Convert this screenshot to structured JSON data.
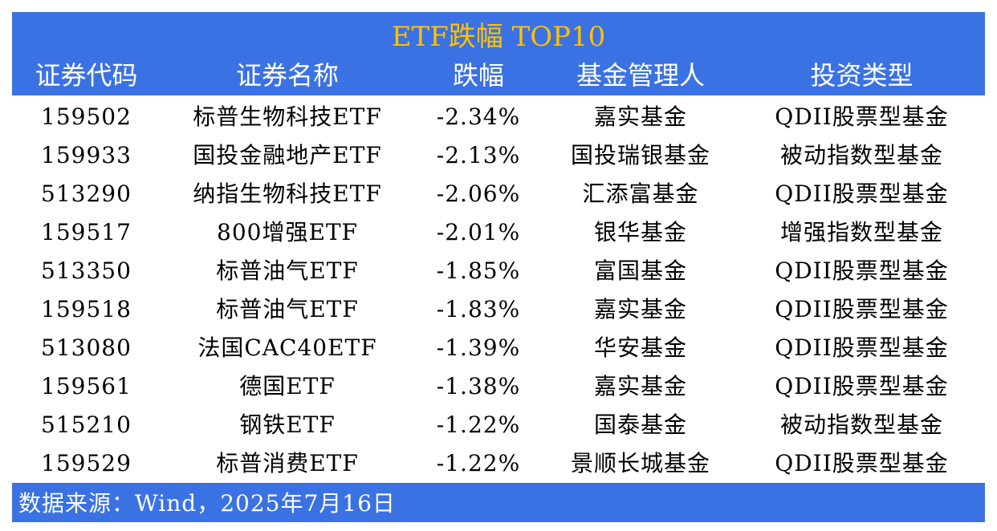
{
  "title": "ETF跌幅 TOP10",
  "columns": [
    "证券代码",
    "证券名称",
    "跌幅",
    "基金管理人",
    "投资类型"
  ],
  "rows": [
    [
      "159502",
      "标普生物科技ETF",
      "-2.34%",
      "嘉实基金",
      "QDII股票型基金"
    ],
    [
      "159933",
      "国投金融地产ETF",
      "-2.13%",
      "国投瑞银基金",
      "被动指数型基金"
    ],
    [
      "513290",
      "纳指生物科技ETF",
      "-2.06%",
      "汇添富基金",
      "QDII股票型基金"
    ],
    [
      "159517",
      "800增强ETF",
      "-2.01%",
      "银华基金",
      "增强指数型基金"
    ],
    [
      "513350",
      "标普油气ETF",
      "-1.85%",
      "富国基金",
      "QDII股票型基金"
    ],
    [
      "159518",
      "标普油气ETF",
      "-1.83%",
      "嘉实基金",
      "QDII股票型基金"
    ],
    [
      "513080",
      "法国CAC40ETF",
      "-1.39%",
      "华安基金",
      "QDII股票型基金"
    ],
    [
      "159561",
      "德国ETF",
      "-1.38%",
      "嘉实基金",
      "QDII股票型基金"
    ],
    [
      "515210",
      "钢铁ETF",
      "-1.22%",
      "国泰基金",
      "被动指数型基金"
    ],
    [
      "159529",
      "标普消费ETF",
      "-1.22%",
      "景顺长城基金",
      "QDII股票型基金"
    ]
  ],
  "footer": "数据来源：Wind，2025年7月16日",
  "colors": {
    "header_bg": "#3b72e3",
    "title": "#ffc000",
    "header_text": "#ffffff"
  }
}
